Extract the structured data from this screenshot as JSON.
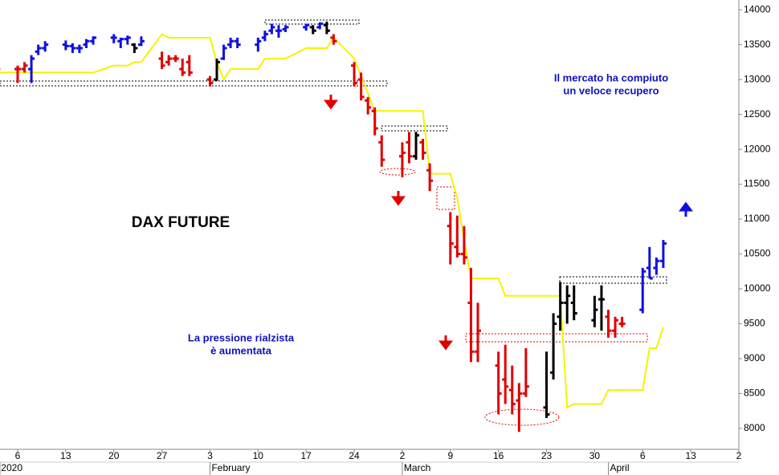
{
  "chart_data": {
    "type": "ohlc",
    "title": "DAX FUTURE",
    "annotations": [
      [
        "Il mercato ha compiuto",
        "un veloce recupero"
      ],
      [
        "La pressione rialzista",
        "è aumentata"
      ]
    ],
    "xlim": [
      3.43,
      111
    ],
    "ylim": [
      7700,
      14140
    ],
    "yticks": [
      8000,
      8500,
      9000,
      9500,
      10000,
      10500,
      11000,
      11500,
      12000,
      12500,
      13000,
      13500,
      14000
    ],
    "xticks": [
      {
        "value": 6,
        "label": "6"
      },
      {
        "value": 13,
        "label": "13"
      },
      {
        "value": 20,
        "label": "20"
      },
      {
        "value": 27,
        "label": "27"
      },
      {
        "value": 34,
        "label": "3"
      },
      {
        "value": 41,
        "label": "10"
      },
      {
        "value": 48,
        "label": "17"
      },
      {
        "value": 55,
        "label": "24"
      },
      {
        "value": 62,
        "label": "2"
      },
      {
        "value": 69,
        "label": "9"
      },
      {
        "value": 76,
        "label": "16"
      },
      {
        "value": 83,
        "label": "23"
      },
      {
        "value": 90,
        "label": "30"
      },
      {
        "value": 97,
        "label": "6"
      },
      {
        "value": 104,
        "label": "13"
      },
      {
        "value": 111,
        "label": "2"
      }
    ],
    "month_labels": [
      {
        "value": 3.43,
        "label": "2020"
      },
      {
        "value": 34,
        "label": "February"
      },
      {
        "value": 62,
        "label": "March"
      },
      {
        "value": 92,
        "label": "April"
      }
    ],
    "bars": {
      "x": [
        3,
        6,
        7,
        8,
        9,
        10,
        13,
        14,
        15,
        16,
        17,
        20,
        21,
        22,
        23,
        24,
        27,
        28,
        29,
        30,
        31,
        34,
        35,
        36,
        37,
        38,
        41,
        42,
        43,
        44,
        45,
        48,
        49,
        50,
        51,
        52,
        55,
        56,
        57,
        58,
        59,
        62,
        63,
        64,
        65,
        66,
        69,
        70,
        71,
        72,
        73,
        76,
        77,
        78,
        79,
        80,
        83,
        84,
        85,
        86,
        87,
        90,
        91,
        92,
        93,
        94,
        97,
        98,
        99,
        100
      ],
      "open": [
        13400,
        13150,
        13150,
        13150,
        13400,
        13450,
        13500,
        13480,
        13450,
        13500,
        13550,
        13600,
        13550,
        13580,
        13500,
        13500,
        13300,
        13250,
        13300,
        13150,
        13250,
        13000,
        13000,
        13300,
        13500,
        13550,
        13500,
        13600,
        13700,
        13700,
        13720,
        13750,
        13750,
        13750,
        13780,
        13600,
        13200,
        13000,
        12700,
        12550,
        12100,
        11900,
        12100,
        11900,
        12100,
        11700,
        10900,
        10600,
        10500,
        9800,
        9100,
        8900,
        8700,
        8550,
        8400,
        8500,
        8300,
        8800,
        9600,
        9800,
        9800,
        9550,
        9850,
        9600,
        9400,
        9500,
        9700,
        10300,
        10300,
        10400
      ],
      "high": [
        13450,
        13200,
        13250,
        13350,
        13500,
        13550,
        13560,
        13520,
        13500,
        13580,
        13620,
        13650,
        13600,
        13630,
        13520,
        13620,
        13400,
        13350,
        13350,
        13300,
        13350,
        13050,
        13300,
        13500,
        13600,
        13600,
        13600,
        13700,
        13800,
        13780,
        13780,
        13800,
        13780,
        13820,
        13830,
        13650,
        13250,
        13100,
        12750,
        12600,
        12200,
        12100,
        12250,
        12250,
        12150,
        11800,
        11100,
        11050,
        10900,
        10300,
        9800,
        9100,
        9200,
        8900,
        8650,
        9150,
        9100,
        9650,
        10100,
        10050,
        10050,
        9900,
        10050,
        9700,
        9600,
        9600,
        10300,
        10600,
        10450,
        10700
      ],
      "low": [
        13100,
        12950,
        13100,
        12950,
        13350,
        13400,
        13420,
        13380,
        13380,
        13450,
        13500,
        13520,
        13450,
        13500,
        13380,
        13480,
        13150,
        13200,
        13250,
        13050,
        13050,
        12900,
        12980,
        13280,
        13450,
        13450,
        13400,
        13550,
        13650,
        13600,
        13680,
        13700,
        13650,
        13720,
        13650,
        13500,
        12900,
        12700,
        12500,
        12200,
        11750,
        11600,
        11800,
        11850,
        11850,
        11400,
        10350,
        10450,
        10350,
        8950,
        8950,
        8200,
        8350,
        8200,
        7950,
        8450,
        8150,
        8700,
        9400,
        9500,
        9550,
        9450,
        9400,
        9300,
        9300,
        9450,
        9650,
        10150,
        10200,
        10300
      ],
      "close": [
        13150,
        13150,
        13200,
        13300,
        13450,
        13500,
        13480,
        13450,
        13450,
        13550,
        13600,
        13600,
        13580,
        13600,
        13450,
        13550,
        13200,
        13300,
        13300,
        13100,
        13100,
        12950,
        13250,
        13450,
        13550,
        13500,
        13550,
        13650,
        13750,
        13700,
        13750,
        13780,
        13700,
        13800,
        13700,
        13550,
        12950,
        12750,
        12600,
        12300,
        11850,
        11950,
        11900,
        12200,
        11950,
        11550,
        10650,
        10500,
        10450,
        9100,
        9400,
        8500,
        8600,
        8350,
        8500,
        8600,
        8200,
        9500,
        9800,
        9900,
        9650,
        9700,
        9850,
        9400,
        9550,
        9500,
        10250,
        10150,
        10400,
        10650
      ],
      "colors": [
        "#e00000",
        "#e00000",
        "#e00000",
        "#1010e0",
        "#1010e0",
        "#1010e0",
        "#1010e0",
        "#1010e0",
        "#1010e0",
        "#1010e0",
        "#1010e0",
        "#1010e0",
        "#1010e0",
        "#1010e0",
        "#000000",
        "#1010e0",
        "#e00000",
        "#e00000",
        "#e00000",
        "#e00000",
        "#e00000",
        "#e00000",
        "#000000",
        "#1010e0",
        "#1010e0",
        "#1010e0",
        "#1010e0",
        "#1010e0",
        "#1010e0",
        "#1010e0",
        "#1010e0",
        "#1010e0",
        "#000000",
        "#1010e0",
        "#000000",
        "#e00000",
        "#e00000",
        "#e00000",
        "#e00000",
        "#e00000",
        "#e00000",
        "#e00000",
        "#e00000",
        "#000000",
        "#e00000",
        "#e00000",
        "#e00000",
        "#e00000",
        "#e00000",
        "#e00000",
        "#e00000",
        "#e00000",
        "#e00000",
        "#e00000",
        "#e00000",
        "#e00000",
        "#000000",
        "#000000",
        "#000000",
        "#000000",
        "#000000",
        "#000000",
        "#000000",
        "#e00000",
        "#e00000",
        "#e00000",
        "#1010e0",
        "#1010e0",
        "#1010e0",
        "#1010e0"
      ]
    },
    "stop_line": {
      "color": "#f4f400",
      "x": [
        3,
        6,
        7,
        8,
        9,
        10,
        13,
        14,
        15,
        16,
        17,
        20,
        21,
        22,
        23,
        24,
        27,
        28,
        29,
        30,
        31,
        34,
        35,
        36,
        37,
        38,
        41,
        42,
        43,
        44,
        45,
        48,
        49,
        50,
        51,
        52,
        55,
        56,
        57,
        58,
        59,
        62,
        63,
        64,
        65,
        66,
        69,
        70,
        71,
        72,
        73,
        76,
        77,
        78,
        79,
        80,
        83,
        84,
        85,
        86,
        87,
        90,
        91,
        92,
        93,
        94,
        97,
        98,
        99,
        100
      ],
      "values": [
        13100,
        13100,
        13100,
        13100,
        13100,
        13100,
        13100,
        13100,
        13100,
        13100,
        13100,
        13200,
        13200,
        13200,
        13250,
        13250,
        13650,
        13600,
        13600,
        13600,
        13600,
        13600,
        13250,
        13000,
        13150,
        13150,
        13150,
        13300,
        13300,
        13300,
        13300,
        13450,
        13450,
        13450,
        13450,
        13600,
        13300,
        13050,
        12800,
        12550,
        12550,
        12550,
        12550,
        12550,
        12550,
        11650,
        11650,
        11300,
        10700,
        10150,
        10150,
        10150,
        9900,
        9900,
        9900,
        9900,
        9900,
        9900,
        9900,
        8300,
        8350,
        8350,
        8350,
        8550,
        8550,
        8550,
        8550,
        9150,
        9150,
        9450
      ]
    }
  }
}
